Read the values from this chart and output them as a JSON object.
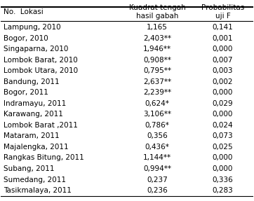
{
  "header_col1": "No.  Lokasi",
  "header_col2": "Kuadrat tengah\nhasil gabah",
  "header_col3": "Probabilitas\nuji F",
  "rows": [
    [
      "Lampung, 2010",
      "1,165",
      "0,141"
    ],
    [
      "Bogor, 2010",
      "2,403**",
      "0,001"
    ],
    [
      "Singaparna, 2010",
      "1,946**",
      "0,000"
    ],
    [
      "Lombok Barat, 2010",
      "0,908**",
      "0,007"
    ],
    [
      "Lombok Utara, 2010",
      "0,795**",
      "0,003"
    ],
    [
      "Bandung, 2011",
      "2,637**",
      "0,002"
    ],
    [
      "Bogor, 2011",
      "2,239**",
      "0,000"
    ],
    [
      "Indramayu, 2011",
      "0,624*",
      "0,029"
    ],
    [
      "Karawang, 2011",
      "3,106**",
      "0,000"
    ],
    [
      "Lombok Barat ,2011",
      "0,786*",
      "0,024"
    ],
    [
      "Mataram, 2011",
      "0,356",
      "0,073"
    ],
    [
      "Majalengka, 2011",
      "0,436*",
      "0,025"
    ],
    [
      "Rangkas Bitung, 2011",
      "1,144**",
      "0,000"
    ],
    [
      "Subang, 2011",
      "0,994**",
      "0,000"
    ],
    [
      "Sumedang, 2011",
      "0,237",
      "0,336"
    ],
    [
      "Tasikmalaya, 2011",
      "0,236",
      "0,283"
    ]
  ],
  "bg_color": "#ffffff",
  "text_color": "#000000",
  "font_size": 7.5,
  "header_font_size": 7.5
}
